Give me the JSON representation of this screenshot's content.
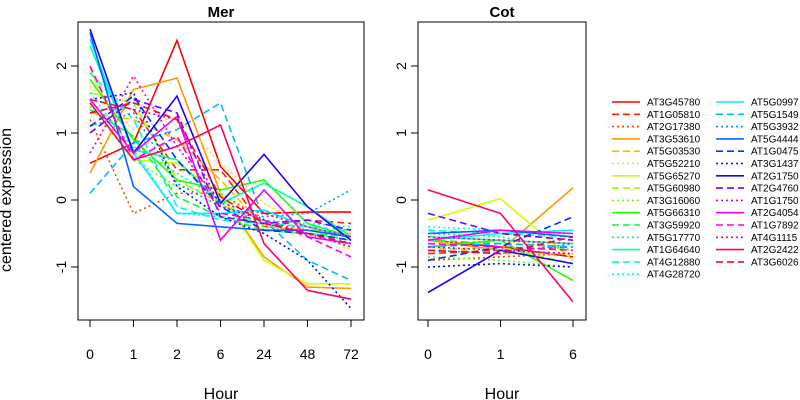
{
  "chart_data": {
    "type": "line",
    "ylabel": "centered expression",
    "legend_position": "right",
    "grid": false,
    "panels": [
      {
        "title": "Mer",
        "xlabel": "Hour",
        "x_ticks": [
          "0",
          "1",
          "2",
          "6",
          "24",
          "48",
          "72"
        ],
        "y_ticks": [
          "2",
          "1",
          "0",
          "-1"
        ],
        "ylim": [
          -1.8,
          2.7
        ]
      },
      {
        "title": "Cot",
        "xlabel": "Hour",
        "x_ticks": [
          "0",
          "1",
          "6"
        ],
        "y_ticks": [
          "2",
          "1",
          "0",
          "-1"
        ],
        "ylim": [
          -1.8,
          2.7
        ]
      }
    ],
    "series": [
      {
        "name": "AT3G45780",
        "color": "#ff0000",
        "dash": "solid",
        "mer": [
          0.55,
          0.85,
          2.38,
          0.5,
          -0.2,
          -0.18,
          -0.18
        ],
        "cot": [
          -0.6,
          -0.7,
          -0.85
        ]
      },
      {
        "name": "AT1G05810",
        "color": "#ff2200",
        "dash": "dashed",
        "mer": [
          1.5,
          1.35,
          0.45,
          0.45,
          -0.4,
          -0.3,
          -0.35
        ],
        "cot": [
          -0.8,
          -0.75,
          -0.7
        ]
      },
      {
        "name": "AT2G17380",
        "color": "#ff4400",
        "dash": "dotted",
        "mer": [
          1.2,
          -0.2,
          0.1,
          0.1,
          -0.3,
          -0.45,
          -0.55
        ],
        "cot": [
          -0.9,
          -0.85,
          -0.8
        ]
      },
      {
        "name": "AT3G53610",
        "color": "#ff9900",
        "dash": "solid",
        "mer": [
          0.4,
          1.65,
          1.82,
          0.1,
          -0.85,
          -1.3,
          -1.32
        ],
        "cot": [
          -0.6,
          -0.75,
          0.18
        ]
      },
      {
        "name": "AT5G03530",
        "color": "#ffbb00",
        "dash": "dashed",
        "mer": [
          1.3,
          1.2,
          0.9,
          0.3,
          -0.4,
          -0.45,
          -0.5
        ],
        "cot": [
          -0.7,
          -0.8,
          -0.8
        ]
      },
      {
        "name": "AT5G52210",
        "color": "#ffdd00",
        "dash": "dotted",
        "mer": [
          1.7,
          1.05,
          1.25,
          0.55,
          -0.05,
          -0.4,
          -0.75
        ],
        "cot": [
          -0.65,
          -0.6,
          -0.75
        ]
      },
      {
        "name": "AT5G65270",
        "color": "#ccff00",
        "dash": "solid",
        "mer": [
          1.95,
          0.6,
          0.55,
          0.1,
          -0.9,
          -1.25,
          -1.25
        ],
        "cot": [
          -0.3,
          0.02,
          -0.9
        ]
      },
      {
        "name": "AT5G60980",
        "color": "#99ff00",
        "dash": "dashed",
        "mer": [
          1.6,
          1.45,
          0.3,
          -0.05,
          -0.45,
          -0.5,
          -0.45
        ],
        "cot": [
          -0.75,
          -0.7,
          -0.95
        ]
      },
      {
        "name": "AT3G16060",
        "color": "#66ff00",
        "dash": "dotted",
        "mer": [
          1.4,
          0.6,
          0.2,
          0.1,
          -0.35,
          -0.4,
          -0.65
        ],
        "cot": [
          -0.85,
          -0.9,
          -1.0
        ]
      },
      {
        "name": "AT5G66310",
        "color": "#22ff00",
        "dash": "solid",
        "mer": [
          1.8,
          0.9,
          0.3,
          0.15,
          0.3,
          -0.35,
          -0.55
        ],
        "cot": [
          -0.7,
          -0.6,
          -1.2
        ]
      },
      {
        "name": "AT3G59920",
        "color": "#00ff33",
        "dash": "dashed",
        "mer": [
          1.35,
          0.95,
          0.05,
          -0.25,
          -0.45,
          -0.5,
          -0.55
        ],
        "cot": [
          -0.6,
          -0.65,
          -0.7
        ]
      },
      {
        "name": "AT5G17770",
        "color": "#00ff77",
        "dash": "dotted",
        "mer": [
          1.5,
          0.8,
          0.4,
          0.0,
          -0.4,
          -0.5,
          -0.6
        ],
        "cot": [
          -0.5,
          -0.55,
          -0.75
        ]
      },
      {
        "name": "AT1G64640",
        "color": "#00ffaa",
        "dash": "solid",
        "mer": [
          2.3,
          0.75,
          0.6,
          -0.05,
          0.25,
          -0.1,
          -0.55
        ],
        "cot": [
          -0.55,
          -0.6,
          -0.65
        ]
      },
      {
        "name": "AT4G12880",
        "color": "#00ffcc",
        "dash": "dashed",
        "mer": [
          1.9,
          1.2,
          -0.1,
          -0.3,
          -0.35,
          -0.4,
          -0.45
        ],
        "cot": [
          -0.45,
          -0.5,
          -0.55
        ]
      },
      {
        "name": "AT4G28720",
        "color": "#00ffee",
        "dash": "dotted",
        "mer": [
          1.6,
          0.75,
          -0.2,
          -0.25,
          -0.3,
          -0.35,
          -0.4
        ],
        "cot": [
          -0.4,
          -0.45,
          -0.5
        ]
      },
      {
        "name": "AT5G0997",
        "color": "#00eeff",
        "dash": "solid",
        "mer": [
          2.4,
          0.7,
          -0.2,
          -0.2,
          -0.15,
          -0.4,
          -0.55
        ],
        "cot": [
          -0.6,
          -0.5,
          -0.45
        ]
      },
      {
        "name": "AT5G1549",
        "color": "#00bbff",
        "dash": "dashed",
        "mer": [
          0.1,
          0.85,
          1.05,
          1.45,
          -0.3,
          -0.9,
          -1.2
        ],
        "cot": [
          -0.7,
          -0.65,
          -0.7
        ]
      },
      {
        "name": "AT5G3932",
        "color": "#0099ff",
        "dash": "dotted",
        "mer": [
          1.1,
          1.3,
          0.25,
          -0.1,
          -0.25,
          -0.2,
          0.15
        ],
        "cot": [
          -0.75,
          -0.8,
          -0.65
        ]
      },
      {
        "name": "AT5G4444",
        "color": "#0066ff",
        "dash": "solid",
        "mer": [
          2.5,
          0.2,
          -0.35,
          -0.4,
          -0.45,
          -0.45,
          -0.55
        ],
        "cot": [
          -0.5,
          -0.45,
          -0.55
        ]
      },
      {
        "name": "AT1G0475",
        "color": "#0033ff",
        "dash": "dashed",
        "mer": [
          1.1,
          1.55,
          0.6,
          -0.1,
          -0.45,
          -0.5,
          -0.6
        ],
        "cot": [
          -0.9,
          -0.7,
          -0.25
        ]
      },
      {
        "name": "AT3G1437",
        "color": "#0011ff",
        "dash": "dotted",
        "mer": [
          1.5,
          1.6,
          0.2,
          -0.25,
          -0.5,
          -0.9,
          -1.62
        ],
        "cot": [
          -1.0,
          -0.95,
          -1.0
        ]
      },
      {
        "name": "AT2G1750",
        "color": "#2200ff",
        "dash": "solid",
        "mer": [
          2.55,
          0.7,
          1.55,
          -0.05,
          0.68,
          -0.1,
          -0.6
        ],
        "cot": [
          -1.38,
          -0.75,
          -0.95
        ]
      },
      {
        "name": "AT2G4760",
        "color": "#7700ff",
        "dash": "dashed",
        "mer": [
          1.0,
          1.5,
          1.3,
          -0.25,
          -0.35,
          -0.3,
          -0.45
        ],
        "cot": [
          -0.2,
          -0.5,
          -0.6
        ]
      },
      {
        "name": "AT1G1750",
        "color": "#bb00ff",
        "dash": "dotted",
        "mer": [
          1.5,
          1.35,
          1.2,
          -0.1,
          -0.3,
          -0.5,
          -0.7
        ],
        "cot": [
          -0.7,
          -0.75,
          -0.8
        ]
      },
      {
        "name": "AT2G4054",
        "color": "#ee00ff",
        "dash": "solid",
        "mer": [
          1.5,
          0.7,
          1.25,
          -0.6,
          0.15,
          -0.55,
          -0.65
        ],
        "cot": [
          -0.6,
          -0.45,
          -0.5
        ]
      },
      {
        "name": "AT1G7892",
        "color": "#ff00dd",
        "dash": "dashed",
        "mer": [
          2.0,
          0.6,
          0.95,
          -0.2,
          -0.3,
          -0.55,
          -0.85
        ],
        "cot": [
          -0.65,
          -0.7,
          -0.75
        ]
      },
      {
        "name": "AT4G1115",
        "color": "#ff00aa",
        "dash": "dotted",
        "mer": [
          0.7,
          1.85,
          0.8,
          -0.05,
          -0.2,
          -0.4,
          -0.55
        ],
        "cot": [
          -0.55,
          -0.6,
          -0.65
        ]
      },
      {
        "name": "AT2G2422",
        "color": "#ff0066",
        "dash": "solid",
        "mer": [
          1.45,
          0.6,
          0.8,
          1.12,
          -0.65,
          -1.35,
          -1.48
        ],
        "cot": [
          0.15,
          -0.2,
          -1.52
        ]
      },
      {
        "name": "AT3G6026",
        "color": "#ff0033",
        "dash": "dashed",
        "mer": [
          1.3,
          1.45,
          1.2,
          0.05,
          -0.35,
          -0.5,
          -0.65
        ],
        "cot": [
          -0.75,
          -0.8,
          -0.55
        ]
      }
    ]
  }
}
